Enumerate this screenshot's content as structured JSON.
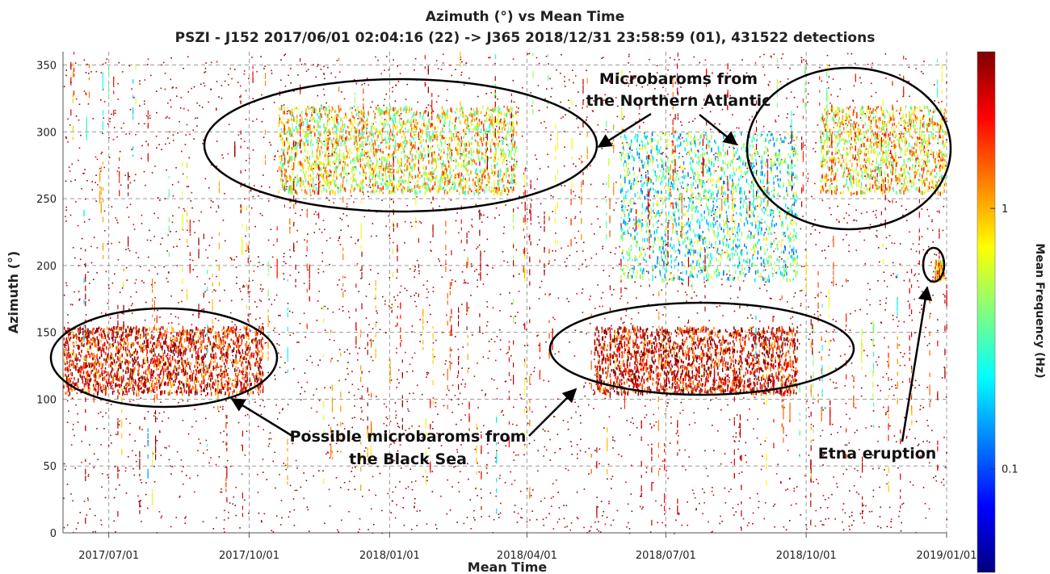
{
  "chart_data": {
    "type": "scatter",
    "title": "Azimuth (°) vs Mean Time",
    "subtitle": "PSZI - J152 2017/06/01 02:04:16 (22) -> J365 2018/12/31 23:58:59 (01), 431522 detections",
    "xlabel": "Mean Time",
    "ylabel": "Azimuth (°)",
    "xlim": [
      "2017-06-01",
      "2019-01-01"
    ],
    "ylim": [
      0,
      360
    ],
    "x_ticks": [
      "2017-07-01",
      "2017-10-01",
      "2018-01-01",
      "2018-04-01",
      "2018-07-01",
      "2018-10-01",
      "2019-01-01"
    ],
    "x_tick_labels": [
      "2017/07/01",
      "2017/10/01",
      "2018/01/01",
      "2018/04/01",
      "2018/07/01",
      "2018/10/01",
      "2019/01/01"
    ],
    "y_ticks": [
      0,
      50,
      100,
      150,
      200,
      250,
      300,
      350
    ],
    "grid": true,
    "colorbar": {
      "label": "Mean Frequency (Hz)",
      "scale": "log",
      "range": [
        0.04,
        4
      ],
      "ticks": [
        0.1,
        1
      ],
      "tick_labels": [
        "0.1",
        "1"
      ],
      "colormap": [
        "#00007f",
        "#0000ff",
        "#007fff",
        "#00ffff",
        "#7fff7f",
        "#ffff00",
        "#ff7f00",
        "#ff0000",
        "#7f0000"
      ]
    },
    "detection_clusters": [
      {
        "start": "2017-10-20",
        "end": "2018-03-25",
        "az_min": 255,
        "az_max": 320,
        "freq_hz": 0.7
      },
      {
        "start": "2018-10-10",
        "end": "2018-12-31",
        "az_min": 255,
        "az_max": 320,
        "freq_hz": 0.8
      },
      {
        "start": "2017-06-01",
        "end": "2017-10-10",
        "az_min": 105,
        "az_max": 155,
        "freq_hz": 2.5
      },
      {
        "start": "2018-05-15",
        "end": "2018-09-25",
        "az_min": 105,
        "az_max": 155,
        "freq_hz": 2.8
      },
      {
        "start": "2018-06-01",
        "end": "2018-09-25",
        "az_min": 190,
        "az_max": 300,
        "freq_hz": 0.3
      },
      {
        "start": "2018-12-24",
        "end": "2018-12-30",
        "az_min": 190,
        "az_max": 205,
        "freq_hz": 1.0
      }
    ],
    "annotations": [
      {
        "text": "Microbaroms from the Northern Atlantic",
        "lines": [
          "Microbaroms from",
          "the Northern Atlantic"
        ]
      },
      {
        "text": "Possible microbaroms from the Black Sea",
        "lines": [
          "Possible microbaroms from",
          "the Black Sea"
        ]
      },
      {
        "text": "Etna eruption",
        "lines": [
          "Etna eruption"
        ]
      }
    ]
  }
}
